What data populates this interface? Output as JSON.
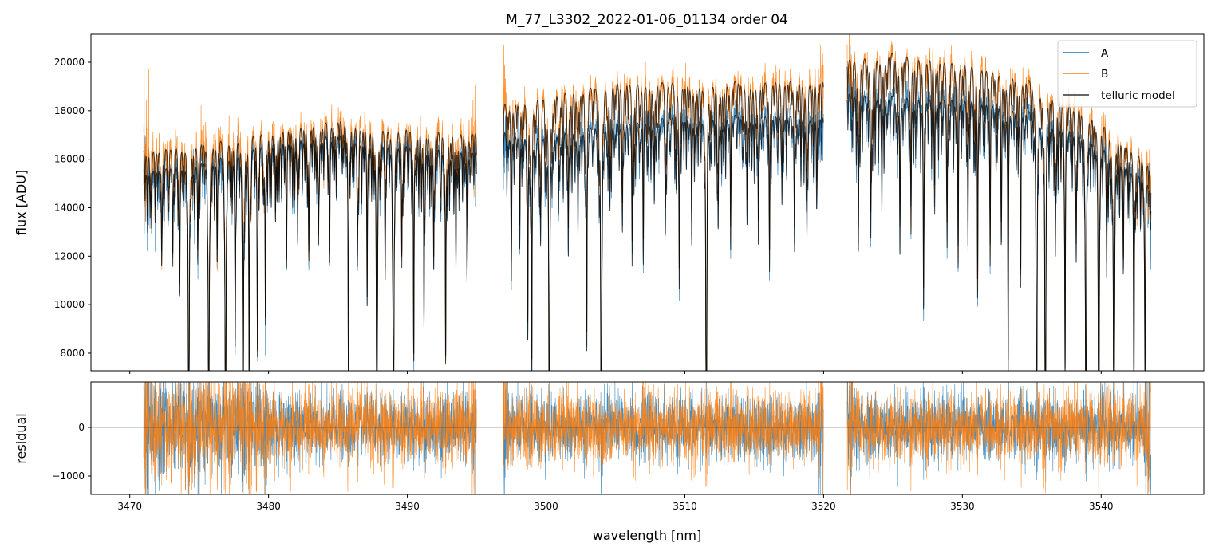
{
  "chart_data": {
    "type": "line",
    "title": "M_77_L3302_2022-01-06_01134  order 04",
    "xlabel": "wavelength [nm]",
    "panels": [
      {
        "name": "spectrum",
        "ylabel": "flux [ADU]",
        "ylim": [
          7276,
          21150
        ],
        "yticks": [
          8000,
          10000,
          12000,
          14000,
          16000,
          18000,
          20000
        ],
        "yticklabels": [
          "8000",
          "10000",
          "12000",
          "14000",
          "16000",
          "18000",
          "20000"
        ]
      },
      {
        "name": "residual",
        "ylabel": "residual",
        "ylim": [
          -1377,
          934
        ],
        "yticks": [
          -1000,
          0
        ],
        "yticklabels": [
          "−1000",
          "0"
        ],
        "zero_line": true
      }
    ],
    "xlim": [
      3467.2,
      3547.4
    ],
    "xticks": [
      3470,
      3480,
      3490,
      3500,
      3510,
      3520,
      3530,
      3540
    ],
    "xticklabels": [
      "3470",
      "3480",
      "3490",
      "3500",
      "3510",
      "3520",
      "3530",
      "3540"
    ],
    "legend": {
      "placement": "top-right",
      "entries": [
        {
          "label": "A",
          "color": "#1f77b4"
        },
        {
          "label": "B",
          "color": "#ff7f0e"
        },
        {
          "label": "telluric model",
          "color": "#333333"
        }
      ]
    },
    "segments": [
      [
        3471.0,
        3495.0
      ],
      [
        3496.9,
        3520.0
      ],
      [
        3521.7,
        3543.6
      ]
    ],
    "continuum_A": [
      [
        3471,
        15700
      ],
      [
        3475,
        16200
      ],
      [
        3480,
        17000
      ],
      [
        3485,
        17200
      ],
      [
        3490,
        16900
      ],
      [
        3495,
        16500
      ],
      [
        3497,
        17300
      ],
      [
        3500,
        17300
      ],
      [
        3505,
        17700
      ],
      [
        3510,
        18000
      ],
      [
        3515,
        18000
      ],
      [
        3520,
        18000
      ],
      [
        3521.7,
        18900
      ],
      [
        3525,
        18800
      ],
      [
        3530,
        18800
      ],
      [
        3535,
        18200
      ],
      [
        3540,
        17000
      ],
      [
        3543.6,
        15200
      ]
    ],
    "continuum_B": [
      [
        3471,
        16500
      ],
      [
        3475,
        17000
      ],
      [
        3480,
        17500
      ],
      [
        3485,
        17800
      ],
      [
        3490,
        17600
      ],
      [
        3495,
        17300
      ],
      [
        3497,
        18500
      ],
      [
        3500,
        19000
      ],
      [
        3505,
        19400
      ],
      [
        3510,
        19400
      ],
      [
        3515,
        19400
      ],
      [
        3520,
        19500
      ],
      [
        3521.7,
        20300
      ],
      [
        3525,
        20600
      ],
      [
        3530,
        20300
      ],
      [
        3535,
        19500
      ],
      [
        3540,
        18000
      ],
      [
        3543.6,
        16000
      ]
    ],
    "telluric_lines": [
      [
        3472.3,
        0.25
      ],
      [
        3473.1,
        0.2
      ],
      [
        3473.6,
        0.3
      ],
      [
        3474.25,
        1.0
      ],
      [
        3474.9,
        0.2
      ],
      [
        3475.69,
        1.0
      ],
      [
        3476.3,
        0.25
      ],
      [
        3476.9,
        1.0
      ],
      [
        3477.6,
        0.45
      ],
      [
        3478.16,
        1.0
      ],
      [
        3478.6,
        0.6
      ],
      [
        3479.2,
        0.5
      ],
      [
        3479.77,
        0.45
      ],
      [
        3480.5,
        0.2
      ],
      [
        3481.3,
        0.3
      ],
      [
        3482.1,
        0.25
      ],
      [
        3482.9,
        0.3
      ],
      [
        3483.6,
        0.25
      ],
      [
        3484.4,
        0.2
      ],
      [
        3485.75,
        0.6
      ],
      [
        3486.4,
        0.3
      ],
      [
        3487.1,
        0.3
      ],
      [
        3487.8,
        1.0
      ],
      [
        3488.4,
        0.3
      ],
      [
        3489.0,
        1.0
      ],
      [
        3489.6,
        0.3
      ],
      [
        3490.46,
        0.55
      ],
      [
        3491.2,
        0.45
      ],
      [
        3491.9,
        0.3
      ],
      [
        3492.76,
        0.55
      ],
      [
        3493.5,
        0.3
      ],
      [
        3494.3,
        0.3
      ],
      [
        3497.5,
        0.3
      ],
      [
        3498.1,
        0.2
      ],
      [
        3498.68,
        0.5
      ],
      [
        3498.97,
        0.6
      ],
      [
        3499.6,
        0.25
      ],
      [
        3500.23,
        1.0
      ],
      [
        3500.9,
        0.2
      ],
      [
        3501.6,
        0.3
      ],
      [
        3502.3,
        0.25
      ],
      [
        3502.93,
        0.55
      ],
      [
        3503.97,
        1.0
      ],
      [
        3504.6,
        0.2
      ],
      [
        3505.5,
        0.25
      ],
      [
        3506.2,
        0.3
      ],
      [
        3507.0,
        0.25
      ],
      [
        3507.8,
        0.2
      ],
      [
        3508.6,
        0.25
      ],
      [
        3509.6,
        0.4
      ],
      [
        3510.5,
        0.2
      ],
      [
        3511.55,
        1.0
      ],
      [
        3512.4,
        0.25
      ],
      [
        3513.3,
        0.2
      ],
      [
        3514.48,
        0.25
      ],
      [
        3515.3,
        0.3
      ],
      [
        3516.1,
        0.25
      ],
      [
        3517.0,
        0.2
      ],
      [
        3517.9,
        0.3
      ],
      [
        3518.8,
        0.25
      ],
      [
        3519.5,
        0.2
      ],
      [
        3522.5,
        0.25
      ],
      [
        3523.4,
        0.3
      ],
      [
        3524.2,
        0.25
      ],
      [
        3525.5,
        0.35
      ],
      [
        3526.3,
        0.3
      ],
      [
        3527.2,
        0.45
      ],
      [
        3528.0,
        0.25
      ],
      [
        3528.9,
        0.3
      ],
      [
        3529.7,
        0.3
      ],
      [
        3530.4,
        0.25
      ],
      [
        3531.1,
        0.45
      ],
      [
        3532.0,
        0.3
      ],
      [
        3532.8,
        0.25
      ],
      [
        3533.3,
        0.6
      ],
      [
        3534.2,
        0.3
      ],
      [
        3535.35,
        1.0
      ],
      [
        3535.98,
        1.0
      ],
      [
        3536.7,
        0.3
      ],
      [
        3537.4,
        0.6
      ],
      [
        3538.2,
        0.3
      ],
      [
        3538.9,
        1.0
      ],
      [
        3539.83,
        1.0
      ],
      [
        3540.4,
        0.3
      ],
      [
        3540.92,
        1.0
      ],
      [
        3541.6,
        0.3
      ],
      [
        3542.36,
        0.7
      ],
      [
        3543.16,
        0.6
      ]
    ]
  }
}
